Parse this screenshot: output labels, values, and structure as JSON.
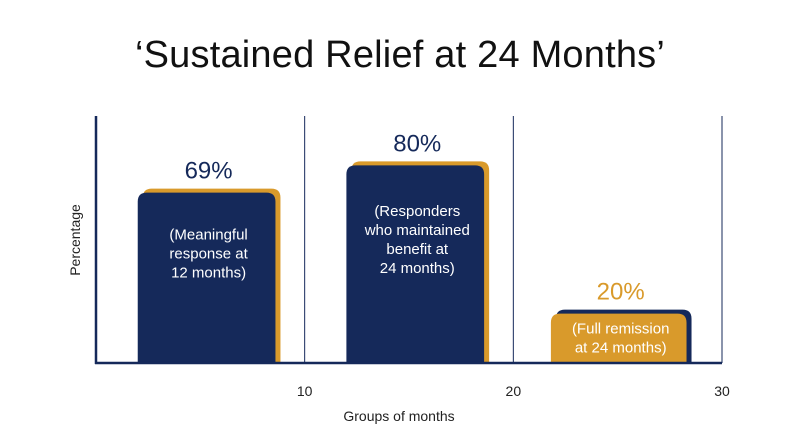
{
  "chart_data": {
    "type": "bar",
    "title": "‘Sustained Relief at 24 Months’",
    "xlabel": "Groups of months",
    "ylabel": "Percentage",
    "xlim": [
      0,
      30
    ],
    "x_ticks": [
      10,
      20,
      30
    ],
    "ylim": [
      0,
      100
    ],
    "grid": "vertical",
    "bars": [
      {
        "x_start": 2,
        "x_end": 8.6,
        "value": 69,
        "value_label": "69%",
        "text_lines": [
          "(Meaningful",
          "response at",
          "12 months)"
        ],
        "fill": "#15295a",
        "shadow": "#d99a2b",
        "label_color": "#15295a"
      },
      {
        "x_start": 12,
        "x_end": 18.6,
        "value": 80,
        "value_label": "80%",
        "text_lines": [
          "(Responders",
          "who maintained",
          "benefit at",
          "24 months)"
        ],
        "fill": "#15295a",
        "shadow": "#d99a2b",
        "label_color": "#15295a"
      },
      {
        "x_start": 21.8,
        "x_end": 28.3,
        "value": 20,
        "value_label": "20%",
        "text_lines": [
          "(Full remission",
          "at 24 months)"
        ],
        "fill": "#d99a2b",
        "shadow": "#15295a",
        "label_color": "#d99a2b"
      }
    ]
  }
}
